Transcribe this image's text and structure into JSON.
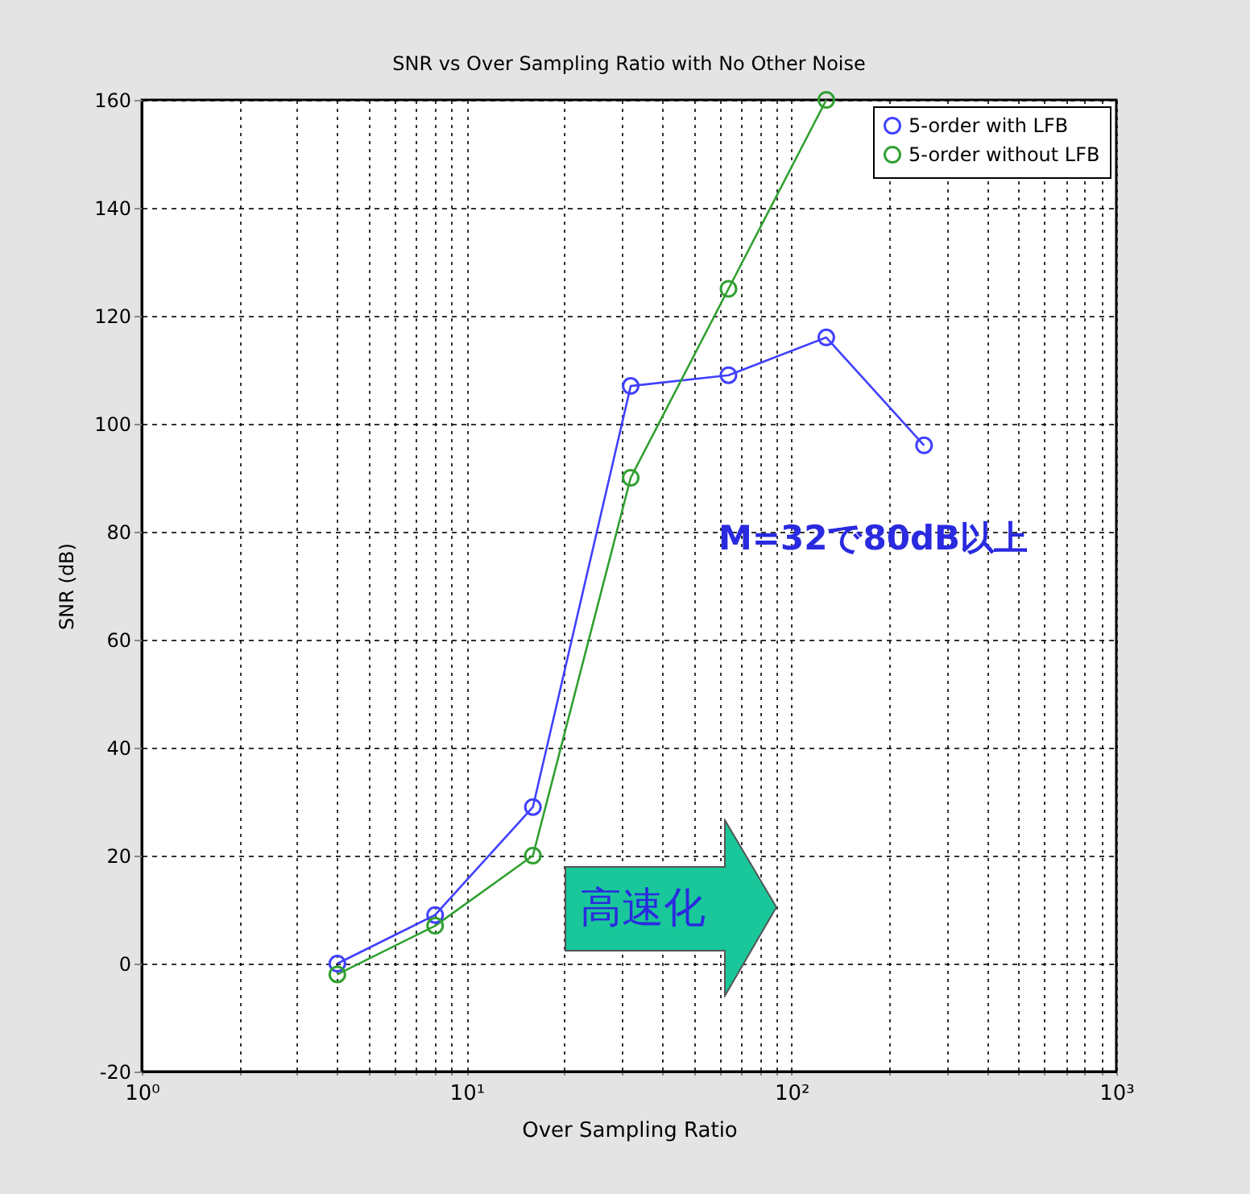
{
  "chart_data": {
    "type": "line",
    "title": "SNR vs Over Sampling Ratio with No Other Noise",
    "xlabel": "Over Sampling Ratio",
    "ylabel": "SNR (dB)",
    "log": "x",
    "xlim": [
      1,
      1000
    ],
    "ylim": [
      -20,
      160
    ],
    "xticks": [
      {
        "value": 1,
        "label": "10⁰"
      },
      {
        "value": 2,
        "label": null
      },
      {
        "value": 3,
        "label": null
      },
      {
        "value": 4,
        "label": null
      },
      {
        "value": 5,
        "label": null
      },
      {
        "value": 6,
        "label": null
      },
      {
        "value": 7,
        "label": null
      },
      {
        "value": 8,
        "label": null
      },
      {
        "value": 9,
        "label": null
      },
      {
        "value": 10,
        "label": "10¹"
      },
      {
        "value": 20,
        "label": null
      },
      {
        "value": 30,
        "label": null
      },
      {
        "value": 40,
        "label": null
      },
      {
        "value": 50,
        "label": null
      },
      {
        "value": 60,
        "label": null
      },
      {
        "value": 70,
        "label": null
      },
      {
        "value": 80,
        "label": null
      },
      {
        "value": 90,
        "label": null
      },
      {
        "value": 100,
        "label": "10²"
      },
      {
        "value": 200,
        "label": null
      },
      {
        "value": 300,
        "label": null
      },
      {
        "value": 400,
        "label": null
      },
      {
        "value": 500,
        "label": null
      },
      {
        "value": 600,
        "label": null
      },
      {
        "value": 700,
        "label": null
      },
      {
        "value": 800,
        "label": null
      },
      {
        "value": 900,
        "label": null
      },
      {
        "value": 1000,
        "label": "10³"
      }
    ],
    "yticks": [
      -20,
      0,
      20,
      40,
      60,
      80,
      100,
      120,
      140,
      160
    ],
    "grid": true,
    "legend": "top right",
    "marker": "circle",
    "line_style": "solid",
    "series": [
      {
        "name": "5-order with LFB",
        "color": "#4040ff",
        "x": [
          4,
          8,
          16,
          32,
          64,
          128,
          256
        ],
        "values": [
          0,
          9,
          29,
          107,
          109,
          116,
          96
        ]
      },
      {
        "name": "5-order without LFB",
        "color": "#30a030",
        "x": [
          4,
          8,
          16,
          32,
          64,
          128
        ],
        "values": [
          -2,
          7,
          20,
          90,
          125,
          160
        ]
      }
    ],
    "annotations": [
      "M=32で80dB以上",
      "高速化"
    ]
  }
}
